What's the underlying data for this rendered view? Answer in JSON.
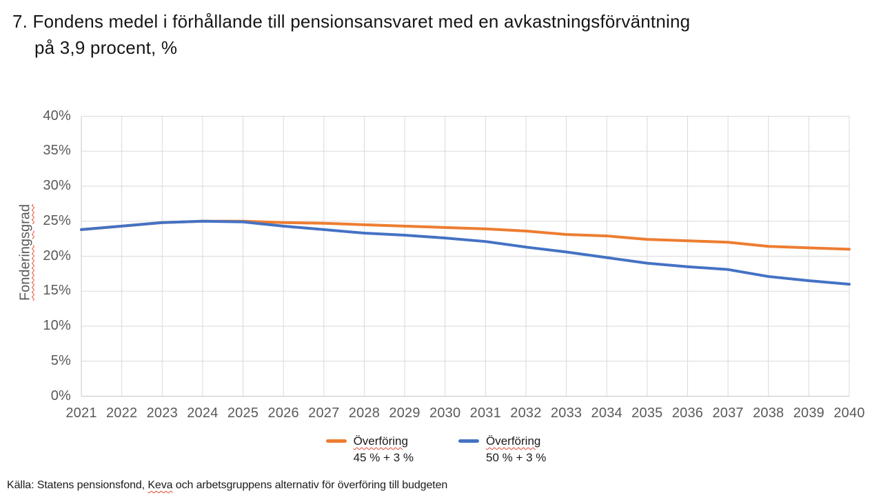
{
  "header": {
    "title_line1": "7. Fondens medel i förhållande till pensionsansvaret med en avkastningsförväntning",
    "title_line2": "på 3,9 procent, %"
  },
  "chart_data": {
    "type": "line",
    "title": "Fondens medel i förhållande till pensionsansvaret med en avkastningsförväntning på 3,9 procent, %",
    "x": [
      2021,
      2022,
      2023,
      2024,
      2025,
      2026,
      2027,
      2028,
      2029,
      2030,
      2031,
      2032,
      2033,
      2034,
      2035,
      2036,
      2037,
      2038,
      2039,
      2040
    ],
    "series": [
      {
        "name": "Överföring 45 % + 3 %",
        "color": "#ED7D31",
        "values": [
          23.8,
          24.3,
          24.8,
          25.0,
          25.0,
          24.8,
          24.7,
          24.5,
          24.3,
          24.1,
          23.9,
          23.6,
          23.1,
          22.9,
          22.4,
          22.2,
          22.0,
          21.4,
          21.2,
          21.0
        ]
      },
      {
        "name": "Överföring 50 % + 3 %",
        "color": "#4472C4",
        "values": [
          23.8,
          24.3,
          24.8,
          25.0,
          24.9,
          24.3,
          23.8,
          23.3,
          23.0,
          22.6,
          22.1,
          21.3,
          20.6,
          19.8,
          19.0,
          18.5,
          18.1,
          17.1,
          16.5,
          16.0
        ]
      }
    ],
    "xlabel": "",
    "ylabel": "Fonderingsgrad",
    "ylim": [
      0,
      40
    ],
    "ytick_step": 5,
    "ytick_suffix": "%",
    "grid": "both",
    "legend_position": "bottom"
  },
  "legend": {
    "items": [
      {
        "line1": "Överföring",
        "line2": "45 % + 3 %",
        "color": "#ED7D31"
      },
      {
        "line1": "Överföring",
        "line2": "50 % + 3 %",
        "color": "#4472C4"
      }
    ]
  },
  "footer": {
    "source_prefix": "Källa: Statens pensionsfond, ",
    "source_marked_word": "Keva",
    "source_suffix": " och arbetsgruppens alternativ för överföring till budgeten"
  },
  "colors": {
    "gridline": "#D9D9D9",
    "axis_line": "#C8C8C8",
    "tick_label": "#595959",
    "spellcheck_underline": "#E0432D",
    "background": "#FFFFFF"
  }
}
